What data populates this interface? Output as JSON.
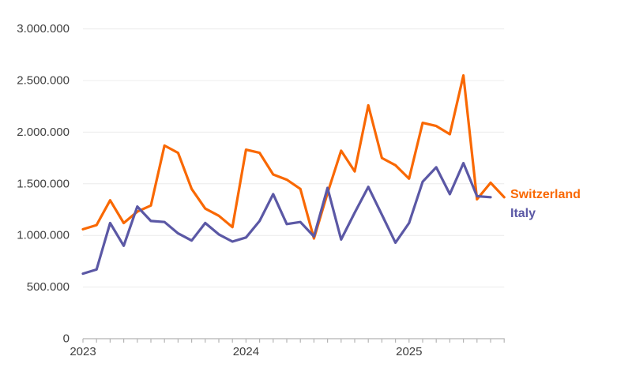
{
  "chart_data": {
    "type": "line",
    "title": "",
    "x": [
      "Jan 2023",
      "Feb 2023",
      "Mar 2023",
      "Apr 2023",
      "May 2023",
      "Jun 2023",
      "Jul 2023",
      "Aug 2023",
      "Sep 2023",
      "Oct 2023",
      "Nov 2023",
      "Dec 2023",
      "Jan 2024",
      "Feb 2024",
      "Mar 2024",
      "Apr 2024",
      "May 2024",
      "Jun 2024",
      "Jul 2024",
      "Aug 2024",
      "Sep 2024",
      "Oct 2024",
      "Nov 2024",
      "Dec 2024",
      "Jan 2025",
      "Feb 2025",
      "Mar 2025",
      "Apr 2025",
      "May 2025",
      "Jun 2025",
      "Jul 2025",
      "Aug 2025"
    ],
    "series": [
      {
        "name": "Switzerland",
        "color": "#f96802",
        "values": [
          1060000,
          1100000,
          1340000,
          1120000,
          1230000,
          1290000,
          1870000,
          1800000,
          1450000,
          1260000,
          1190000,
          1080000,
          1830000,
          1800000,
          1590000,
          1540000,
          1450000,
          970000,
          1410000,
          1820000,
          1620000,
          2260000,
          1750000,
          1680000,
          1550000,
          2090000,
          2060000,
          1980000,
          2550000,
          1350000,
          1510000,
          1370000
        ]
      },
      {
        "name": "Italy",
        "color": "#5b58a5",
        "values": [
          630000,
          670000,
          1120000,
          900000,
          1280000,
          1140000,
          1130000,
          1020000,
          950000,
          1120000,
          1010000,
          940000,
          980000,
          1140000,
          1400000,
          1110000,
          1130000,
          990000,
          1460000,
          960000,
          1220000,
          1470000,
          1200000,
          930000,
          1120000,
          1520000,
          1660000,
          1400000,
          1700000,
          1380000,
          1370000,
          null
        ]
      }
    ],
    "x_axis": {
      "year_labels": [
        "2023",
        "2024",
        "2025"
      ],
      "tick_unit": "month"
    },
    "y_axis": {
      "min": 0,
      "max": 3000000,
      "step": 500000,
      "tick_labels": [
        "0",
        "500.000",
        "1.000.000",
        "1.500.000",
        "2.000.000",
        "2.500.000",
        "3.000.000"
      ]
    },
    "legend": {
      "position": "line-end-right"
    },
    "grid": "horizontal",
    "colors": {
      "grid_line": "#ececec",
      "axis_line": "#b5b5b5",
      "axis_text": "#3f3f3f"
    }
  }
}
